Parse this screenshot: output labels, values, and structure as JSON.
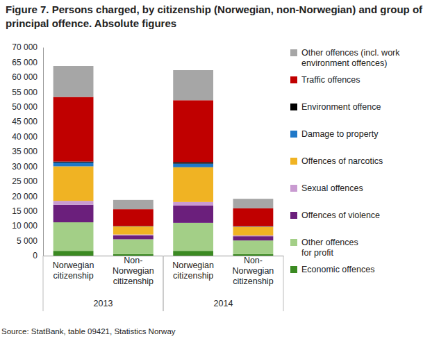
{
  "chart_data": {
    "type": "bar",
    "stacked": true,
    "grid": false,
    "legend": "right",
    "title": "Figure 7. Persons charged, by citizenship (Norwegian, non-Norwegian) and group of\nprincipal offence. Absolute figures",
    "source": "Source: StatBank, table 09421, Statistics Norway",
    "categories": [
      "Norwegian\ncitizenship",
      "Non-\nNorwegian\ncitizenship",
      "Norwegian\ncitizenship",
      "Non-\nNorwegian\ncitizenship"
    ],
    "category_groups": [
      "2013",
      "2014"
    ],
    "ylim": [
      0,
      70000
    ],
    "yticks": [
      0,
      {
        "value": 5000,
        "label": "5 000"
      },
      {
        "value": 10000,
        "label": "10 000"
      },
      {
        "value": 15000,
        "label": "15 000"
      },
      {
        "value": 20000,
        "label": "20 000"
      },
      {
        "value": 25000,
        "label": "25 000"
      },
      {
        "value": 30000,
        "label": "30 000"
      },
      {
        "value": 35000,
        "label": "35 000"
      },
      {
        "value": 40000,
        "label": "40 000"
      },
      {
        "value": 45000,
        "label": "45 000"
      },
      {
        "value": 50000,
        "label": "50 000"
      },
      {
        "value": 55000,
        "label": "55 000"
      },
      {
        "value": 60000,
        "label": "60 000"
      },
      {
        "value": 65000,
        "label": "65 000"
      },
      {
        "value": 70000,
        "label": "70 000"
      }
    ],
    "series": [
      {
        "name": "Economic offences",
        "color": "#3b8a22",
        "values": [
          1600,
          500,
          1600,
          500
        ]
      },
      {
        "name": "Other offences\nfor profit",
        "color": "#a3cf87",
        "values": [
          9600,
          5000,
          9400,
          4600
        ]
      },
      {
        "name": "Offences of violence",
        "color": "#6b1f7c",
        "values": [
          5900,
          1300,
          5800,
          1400
        ]
      },
      {
        "name": "Sexual offences",
        "color": "#c99bd1",
        "values": [
          1300,
          300,
          1200,
          300
        ]
      },
      {
        "name": "Offences of narcotics",
        "color": "#f0b323",
        "values": [
          11600,
          2700,
          11700,
          2900
        ]
      },
      {
        "name": "Damage to property",
        "color": "#1f78c8",
        "values": [
          1300,
          100,
          1200,
          100
        ]
      },
      {
        "name": "Environment offence",
        "color": "#000000",
        "values": [
          300,
          50,
          500,
          50
        ]
      },
      {
        "name": "Traffic offences",
        "color": "#c00000",
        "values": [
          21700,
          5650,
          20800,
          6050
        ]
      },
      {
        "name": "Other offences (incl. work\nenvironment offences)",
        "color": "#a6a6a6",
        "values": [
          10400,
          3100,
          10100,
          3200
        ]
      }
    ]
  }
}
